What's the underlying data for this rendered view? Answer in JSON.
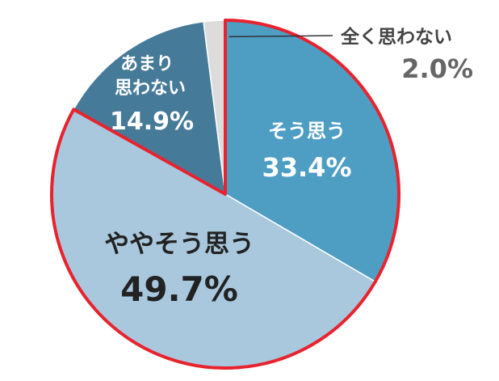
{
  "chart_data": {
    "type": "pie",
    "title": "",
    "slices": [
      {
        "label": "そう思う",
        "value": 33.4,
        "display": "33.4%",
        "color": "#4e9ec4"
      },
      {
        "label": "ややそう思う",
        "value": 49.7,
        "display": "49.7%",
        "color": "#a9c8dd"
      },
      {
        "label": "あまり 思わない",
        "value": 14.9,
        "display": "14.9%",
        "color": "#467a99"
      },
      {
        "label": "全く思わない",
        "value": 2.0,
        "display": "2.0%",
        "color": "#dcdcdc"
      }
    ],
    "highlight_outline_color": "#e8232e",
    "highlighted_slices": [
      "そう思う",
      "ややそう思う"
    ]
  }
}
